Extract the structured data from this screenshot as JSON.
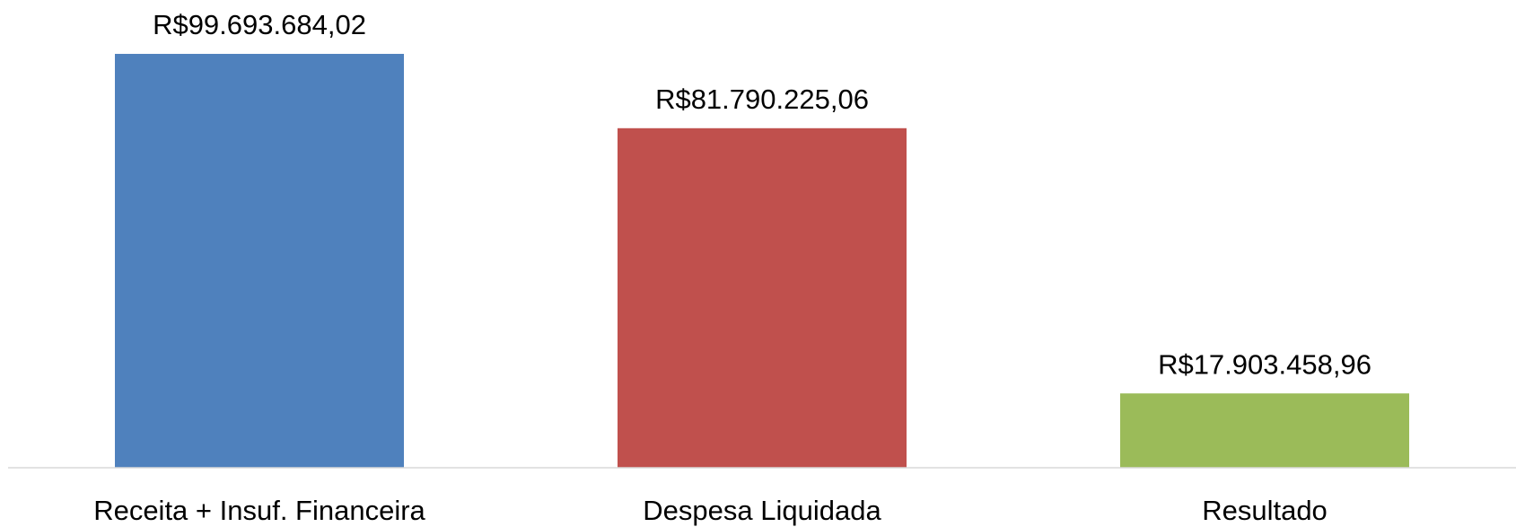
{
  "chart_data": {
    "type": "bar",
    "categories": [
      "Receita + Insuf. Financeira",
      "Despesa Liquidada",
      "Resultado"
    ],
    "values": [
      99693684.02,
      81790225.06,
      17903458.96
    ],
    "value_labels": [
      "R$99.693.684,02",
      "R$81.790.225,06",
      "R$17.903.458,96"
    ],
    "colors": [
      "#4f81bd",
      "#c0504d",
      "#9bbb59"
    ],
    "ylim": [
      0,
      100000000
    ]
  }
}
